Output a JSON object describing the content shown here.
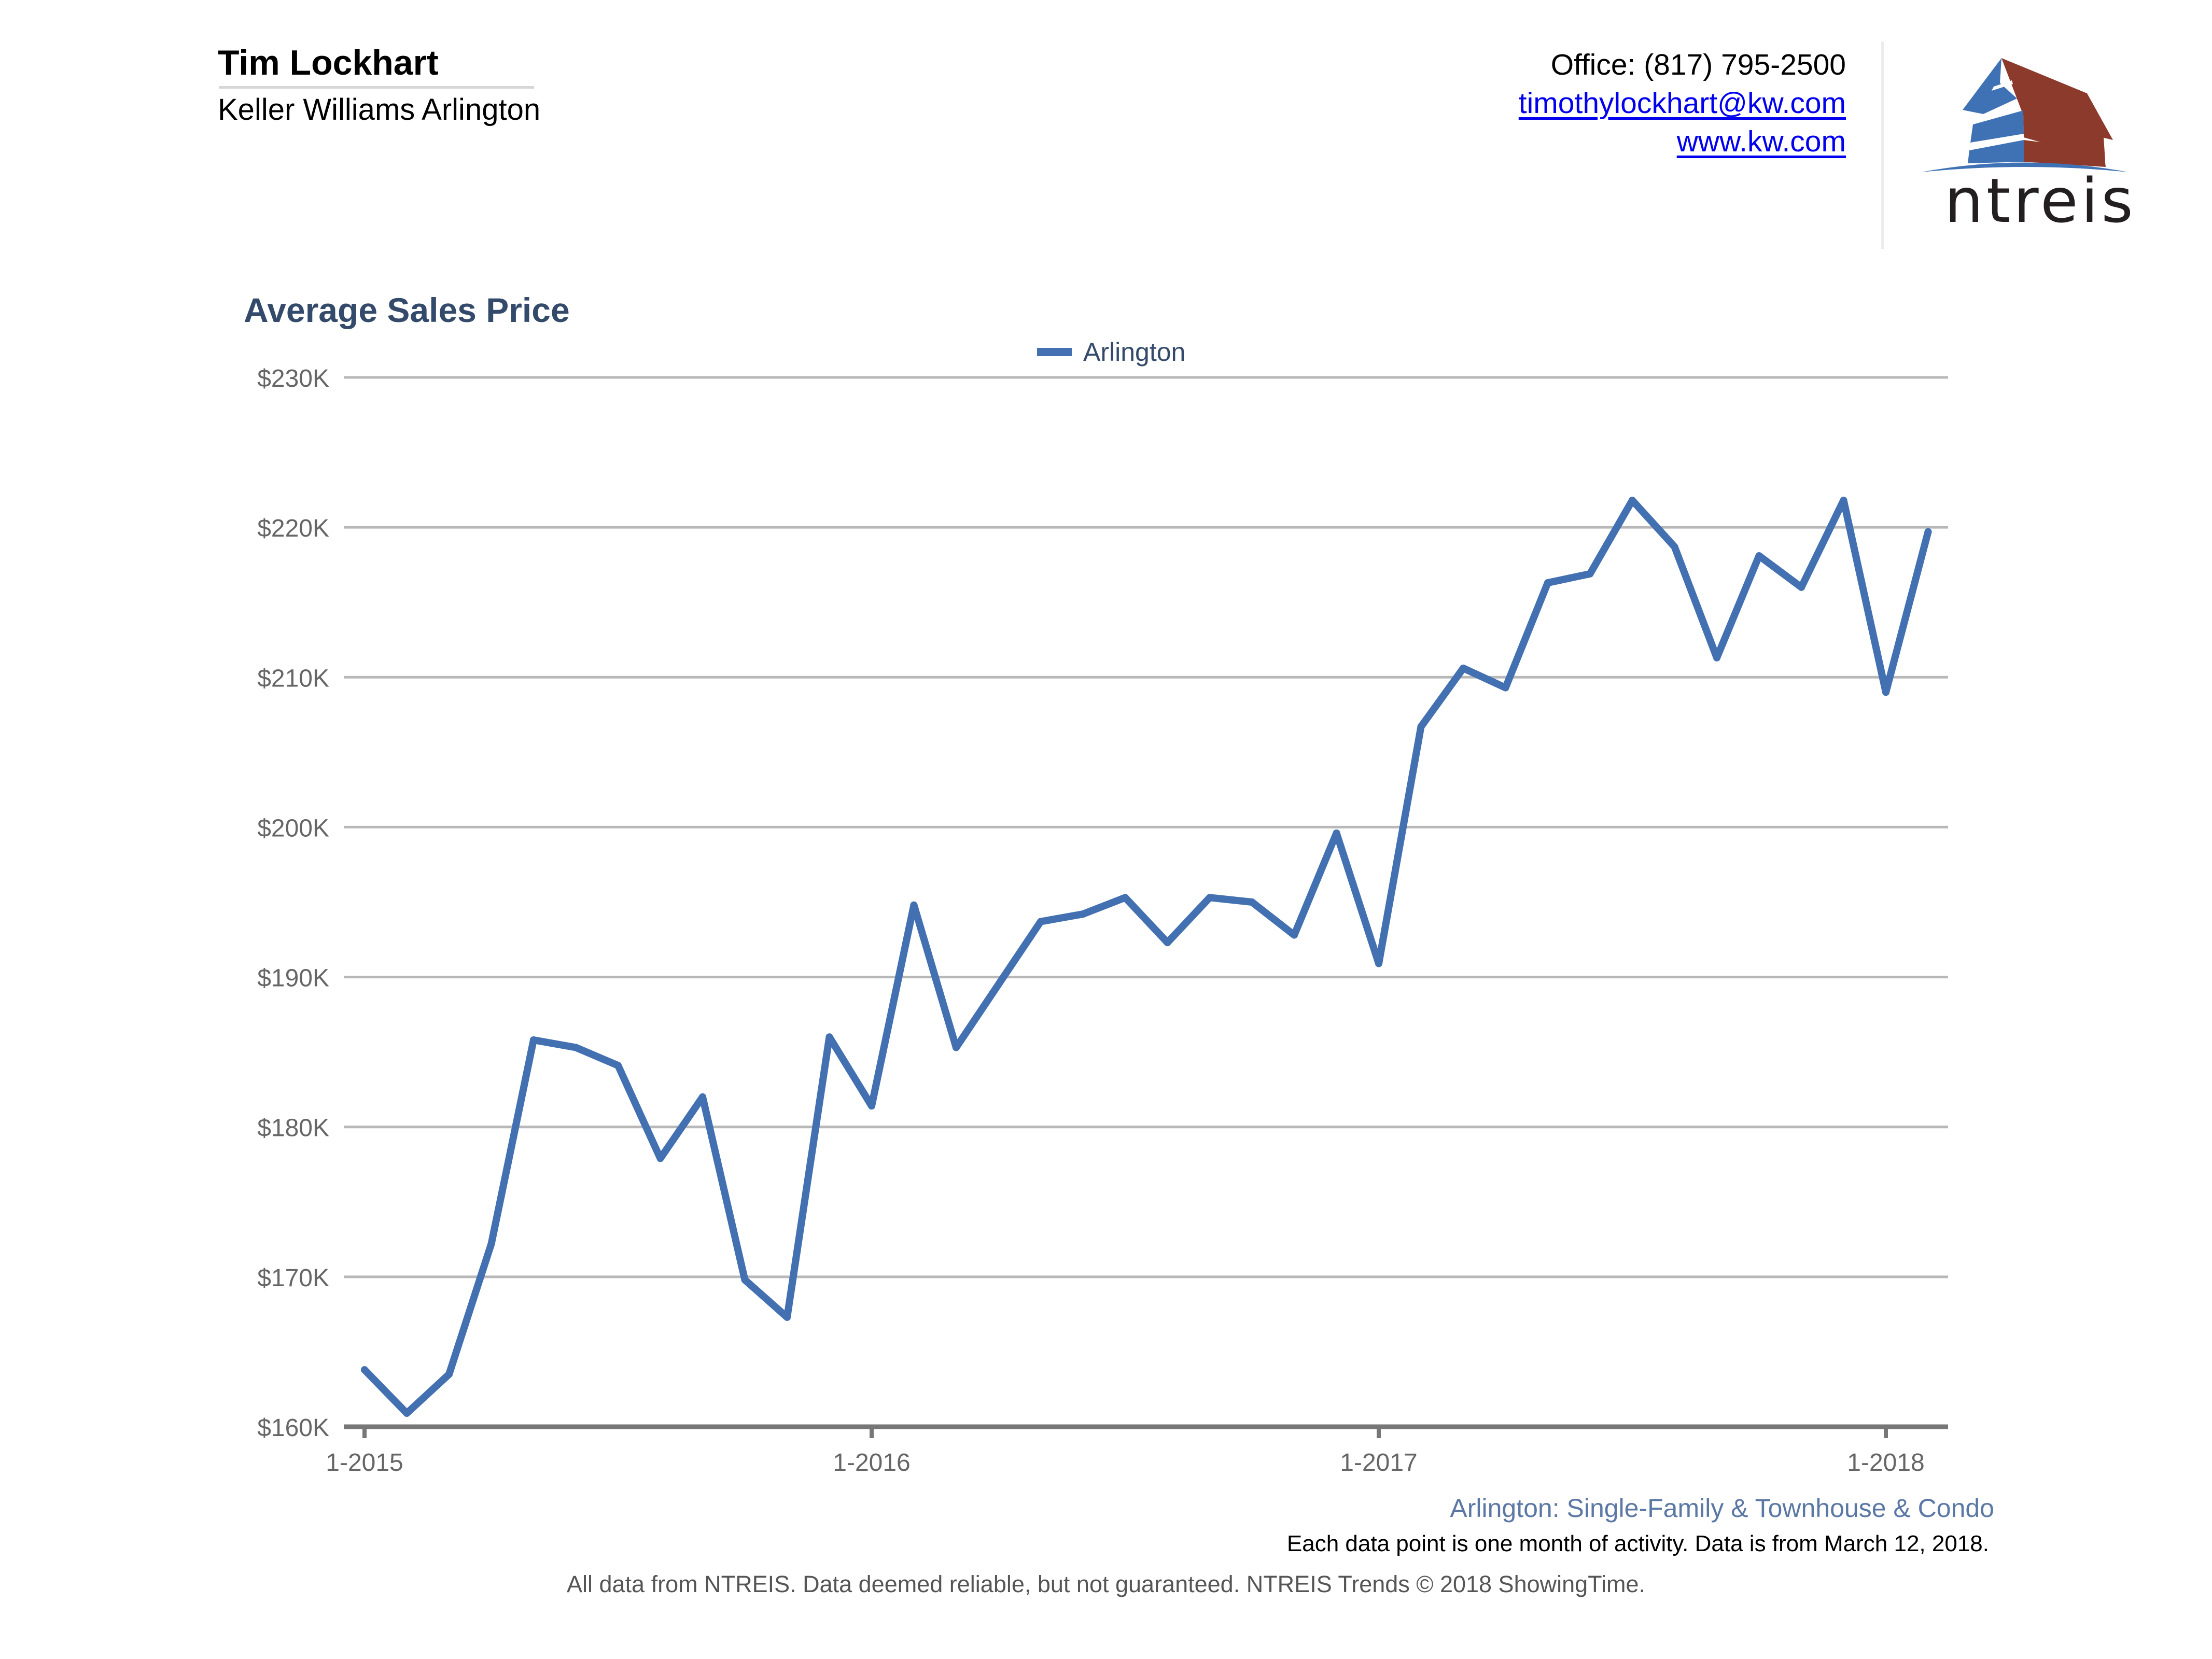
{
  "header": {
    "agent_name": "Tim Lockhart",
    "brokerage": "Keller Williams Arlington",
    "office_phone": "Office: (817) 795-2500",
    "email": "timothylockhart@kw.com",
    "website": "www.kw.com",
    "logo_text": "ntreis"
  },
  "colors": {
    "series": "#4270b1",
    "title": "#344a6b",
    "subtitle": "#5b77a3",
    "logo_blue": "#3f72b4",
    "logo_red": "#8b3a2c"
  },
  "chart_data": {
    "type": "line",
    "title": "Average Sales Price",
    "xlabel": "",
    "ylabel": "",
    "ylim": [
      160000,
      230000
    ],
    "y_ticks": [
      160000,
      170000,
      180000,
      190000,
      200000,
      210000,
      220000,
      230000
    ],
    "y_tick_labels": [
      "$160K",
      "$170K",
      "$180K",
      "$190K",
      "$200K",
      "$210K",
      "$220K",
      "$230K"
    ],
    "x_tick_labels": [
      "1-2015",
      "1-2016",
      "1-2017",
      "1-2018"
    ],
    "x_tick_index": [
      0,
      12,
      24,
      36
    ],
    "grid": true,
    "legend": "top-center",
    "x": [
      "1-2015",
      "2-2015",
      "3-2015",
      "4-2015",
      "5-2015",
      "6-2015",
      "7-2015",
      "8-2015",
      "9-2015",
      "10-2015",
      "11-2015",
      "12-2015",
      "1-2016",
      "2-2016",
      "3-2016",
      "4-2016",
      "5-2016",
      "6-2016",
      "7-2016",
      "8-2016",
      "9-2016",
      "10-2016",
      "11-2016",
      "12-2016",
      "1-2017",
      "2-2017",
      "3-2017",
      "4-2017",
      "5-2017",
      "6-2017",
      "7-2017",
      "8-2017",
      "9-2017",
      "10-2017",
      "11-2017",
      "12-2017",
      "1-2018",
      "2-2018"
    ],
    "series": [
      {
        "name": "Arlington",
        "values": [
          163800,
          160900,
          163500,
          172200,
          185800,
          185300,
          184100,
          177900,
          182000,
          169800,
          167300,
          186000,
          181400,
          194800,
          185300,
          189500,
          193700,
          194200,
          195300,
          192300,
          195300,
          195000,
          192800,
          199600,
          190900,
          206700,
          210600,
          209300,
          216300,
          216900,
          221800,
          218700,
          211300,
          218100,
          216000,
          221800,
          209000,
          219700
        ]
      }
    ],
    "subtitle": "Arlington: Single-Family & Townhouse & Condo",
    "note": "Each data point is one month of activity. Data is from March 12, 2018."
  },
  "footer": "All data from NTREIS. Data deemed reliable, but not guaranteed. NTREIS Trends © 2018 ShowingTime."
}
